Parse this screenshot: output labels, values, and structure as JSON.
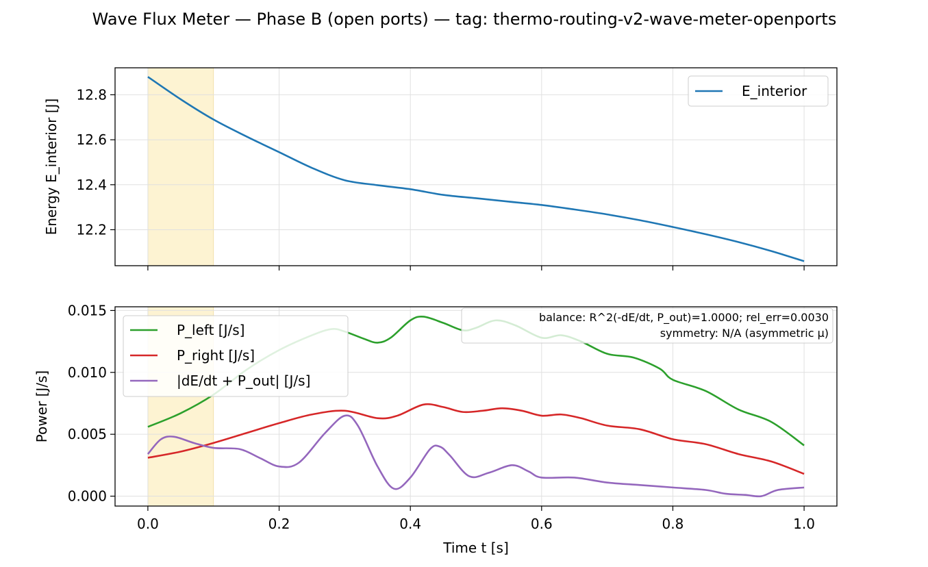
{
  "title": "Wave Flux Meter — Phase B (open ports) — tag: thermo-routing-v2-wave-meter-openports",
  "colors": {
    "e_interior": "#1f77b4",
    "p_left": "#2ca02c",
    "p_right": "#d62728",
    "residual": "#9467bd",
    "shade": "#fdf3d2",
    "grid": "#e0e0e0"
  },
  "chart_data": [
    {
      "type": "line",
      "ylabel": "Energy E_interior [J]",
      "xlim": [
        -0.05,
        1.05
      ],
      "ylim": [
        12.04,
        12.92
      ],
      "xticks": [
        0.0,
        0.2,
        0.4,
        0.6,
        0.8,
        1.0
      ],
      "yticks": [
        12.2,
        12.4,
        12.6,
        12.8
      ],
      "ytick_labels": [
        "12.2",
        "12.4",
        "12.6",
        "12.8"
      ],
      "shaded_x": [
        0.0,
        0.1
      ],
      "grid": true,
      "legend_position": "top-right",
      "series": [
        {
          "name": "E_interior",
          "color_key": "e_interior",
          "x": [
            0.0,
            0.05,
            0.1,
            0.15,
            0.2,
            0.25,
            0.3,
            0.35,
            0.4,
            0.45,
            0.5,
            0.55,
            0.6,
            0.65,
            0.7,
            0.75,
            0.8,
            0.85,
            0.9,
            0.95,
            1.0
          ],
          "y": [
            12.88,
            12.78,
            12.69,
            12.615,
            12.545,
            12.475,
            12.42,
            12.398,
            12.38,
            12.355,
            12.34,
            12.325,
            12.31,
            12.29,
            12.268,
            12.242,
            12.212,
            12.18,
            12.145,
            12.105,
            12.06
          ]
        }
      ]
    },
    {
      "type": "line",
      "xlabel": "Time t [s]",
      "ylabel": "Power [J/s]",
      "xlim": [
        -0.05,
        1.05
      ],
      "ylim": [
        -0.0008,
        0.0153
      ],
      "xticks": [
        0.0,
        0.2,
        0.4,
        0.6,
        0.8,
        1.0
      ],
      "xtick_labels": [
        "0.0",
        "0.2",
        "0.4",
        "0.6",
        "0.8",
        "1.0"
      ],
      "yticks": [
        0.0,
        0.005,
        0.01,
        0.015
      ],
      "ytick_labels": [
        "0.000",
        "0.005",
        "0.010",
        "0.015"
      ],
      "shaded_x": [
        0.0,
        0.1
      ],
      "grid": true,
      "legend_position": "top-left",
      "annotation": {
        "line1": "balance: R^2(-dE/dt, P_out)=1.0000; rel_err=0.0030",
        "line2": "symmetry: N/A (asymmetric μ)",
        "position": "top-right"
      },
      "series": [
        {
          "name": "P_left [J/s]",
          "color_key": "p_left",
          "x": [
            0.0,
            0.05,
            0.1,
            0.15,
            0.2,
            0.25,
            0.28,
            0.3,
            0.33,
            0.35,
            0.37,
            0.4,
            0.42,
            0.45,
            0.48,
            0.5,
            0.53,
            0.56,
            0.6,
            0.63,
            0.66,
            0.7,
            0.74,
            0.78,
            0.8,
            0.85,
            0.9,
            0.95,
            1.0
          ],
          "y": [
            0.0056,
            0.0067,
            0.0082,
            0.0102,
            0.0118,
            0.013,
            0.0135,
            0.0133,
            0.0127,
            0.0124,
            0.0128,
            0.0142,
            0.0145,
            0.014,
            0.0134,
            0.0136,
            0.0142,
            0.0138,
            0.0128,
            0.013,
            0.0125,
            0.0115,
            0.0112,
            0.0103,
            0.0094,
            0.0085,
            0.007,
            0.006,
            0.0041
          ]
        },
        {
          "name": "P_right [J/s]",
          "color_key": "p_right",
          "x": [
            0.0,
            0.05,
            0.1,
            0.15,
            0.2,
            0.25,
            0.3,
            0.35,
            0.38,
            0.42,
            0.45,
            0.48,
            0.51,
            0.54,
            0.57,
            0.6,
            0.63,
            0.66,
            0.7,
            0.75,
            0.8,
            0.85,
            0.9,
            0.95,
            1.0
          ],
          "y": [
            0.0031,
            0.0036,
            0.0043,
            0.0051,
            0.0059,
            0.0066,
            0.0069,
            0.0063,
            0.0065,
            0.0074,
            0.0072,
            0.0068,
            0.0069,
            0.0071,
            0.0069,
            0.0065,
            0.0066,
            0.0063,
            0.0057,
            0.0054,
            0.0046,
            0.0042,
            0.0034,
            0.0028,
            0.0018
          ]
        },
        {
          "name": "|dE/dt + P_out| [J/s]",
          "color_key": "residual",
          "x": [
            0.0,
            0.02,
            0.04,
            0.07,
            0.1,
            0.14,
            0.17,
            0.2,
            0.23,
            0.27,
            0.3,
            0.32,
            0.35,
            0.375,
            0.4,
            0.43,
            0.445,
            0.46,
            0.49,
            0.52,
            0.555,
            0.58,
            0.6,
            0.65,
            0.7,
            0.75,
            0.8,
            0.85,
            0.88,
            0.91,
            0.935,
            0.96,
            1.0
          ],
          "y": [
            0.0034,
            0.0046,
            0.0048,
            0.0043,
            0.0039,
            0.0038,
            0.0031,
            0.0024,
            0.0027,
            0.0051,
            0.0065,
            0.0057,
            0.0024,
            0.0006,
            0.0015,
            0.0038,
            0.004,
            0.0033,
            0.0016,
            0.0019,
            0.0025,
            0.002,
            0.0015,
            0.0015,
            0.0011,
            0.0009,
            0.0007,
            0.0005,
            0.0002,
            0.0001,
            0.0,
            0.0005,
            0.0007
          ]
        }
      ]
    }
  ]
}
